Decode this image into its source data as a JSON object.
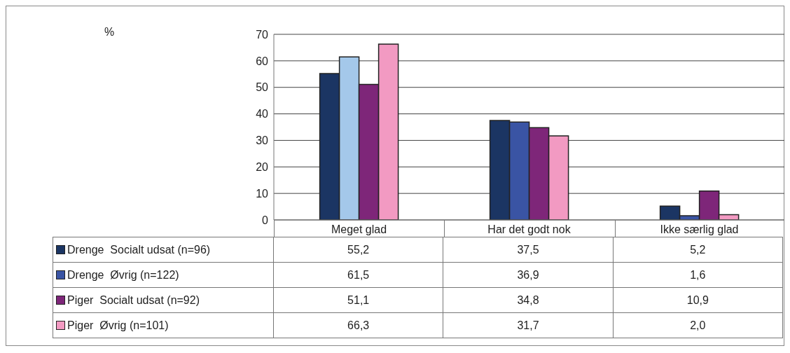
{
  "chart_data": {
    "type": "bar",
    "annotations": [
      "%"
    ],
    "categories": [
      "Meget glad",
      "Har det godt nok",
      "Ikke særlig glad"
    ],
    "series": [
      {
        "name": "Drenge  Socialt udsat (n=96)",
        "color": "#1b3563",
        "values": [
          55.2,
          37.5,
          5.2
        ],
        "value_labels": [
          "55,2",
          "37,5",
          "5,2"
        ]
      },
      {
        "name": "Drenge  Øvrig (n=122)",
        "color": "#3a54a4",
        "colors": [
          "#a4c8ea",
          "#3a54a4",
          "#3a54a4"
        ],
        "values": [
          61.5,
          36.9,
          1.6
        ],
        "value_labels": [
          "61,5",
          "36,9",
          "1,6"
        ]
      },
      {
        "name": "Piger  Socialt udsat (n=92)",
        "color": "#7e2679",
        "values": [
          51.1,
          34.8,
          10.9
        ],
        "value_labels": [
          "51,1",
          "34,8",
          "10,9"
        ]
      },
      {
        "name": "Piger  Øvrig (n=101)",
        "color": "#f29ac2",
        "values": [
          66.3,
          31.7,
          2.0
        ],
        "value_labels": [
          "66,3",
          "31,7",
          "2,0"
        ]
      }
    ],
    "ylim": [
      0,
      70
    ],
    "yticks": [
      0,
      10,
      20,
      30,
      40,
      50,
      60,
      70
    ],
    "grid": "y",
    "legend": "bottom"
  }
}
